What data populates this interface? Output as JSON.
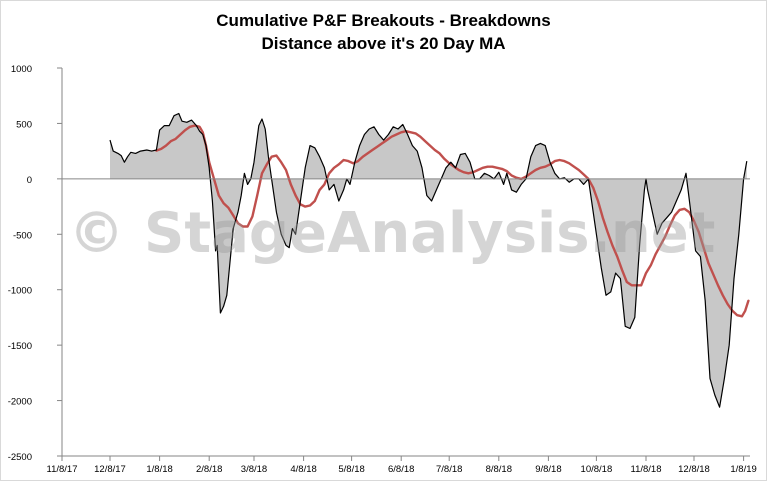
{
  "chart_data": {
    "type": "area",
    "title": "Cumulative P&F Breakouts - Breakdowns",
    "subtitle": "Distance above it's 20 Day MA",
    "xlabel": "",
    "ylabel": "",
    "ylim": [
      -2500,
      1000
    ],
    "yticks": [
      1000,
      500,
      0,
      -500,
      -1000,
      -1500,
      -2000,
      -2500
    ],
    "ytick_labels": [
      "1000",
      "500",
      "0",
      "-500",
      "-1000",
      "-1500",
      "-2000",
      "-2500"
    ],
    "xlim": [
      "2017-11-08",
      "2019-01-12"
    ],
    "xticks": [
      "2017-11-08",
      "2017-12-08",
      "2018-01-08",
      "2018-02-08",
      "2018-03-08",
      "2018-04-08",
      "2018-05-08",
      "2018-06-08",
      "2018-07-08",
      "2018-08-08",
      "2018-09-08",
      "2018-10-08",
      "2018-11-08",
      "2018-12-08",
      "2019-01-08"
    ],
    "xtick_labels": [
      "11/8/17",
      "12/8/17",
      "1/8/18",
      "2/8/18",
      "3/8/18",
      "4/8/18",
      "5/8/18",
      "6/8/18",
      "7/8/18",
      "8/8/18",
      "9/8/18",
      "10/8/18",
      "11/8/18",
      "12/8/18",
      "1/8/19"
    ],
    "grid": false,
    "legend": "none",
    "colors": {
      "area_fill": "#c8c8c8",
      "line": "#000000",
      "ma_line": "#c0504d"
    },
    "series": [
      {
        "values": [
          [
            "2017-12-08",
            350
          ],
          [
            "2017-12-10",
            250
          ],
          [
            "2017-12-13",
            230
          ],
          [
            "2017-12-15",
            210
          ],
          [
            "2017-12-17",
            150
          ],
          [
            "2017-12-19",
            200
          ],
          [
            "2017-12-21",
            240
          ],
          [
            "2017-12-24",
            230
          ],
          [
            "2017-12-27",
            250
          ],
          [
            "2017-12-31",
            260
          ],
          [
            "2018-01-03",
            250
          ],
          [
            "2018-01-06",
            260
          ],
          [
            "2018-01-08",
            440
          ],
          [
            "2018-01-11",
            480
          ],
          [
            "2018-01-14",
            480
          ],
          [
            "2018-01-17",
            570
          ],
          [
            "2018-01-20",
            590
          ],
          [
            "2018-01-22",
            520
          ],
          [
            "2018-01-25",
            510
          ],
          [
            "2018-01-28",
            530
          ],
          [
            "2018-01-31",
            480
          ],
          [
            "2018-02-02",
            430
          ],
          [
            "2018-02-04",
            400
          ],
          [
            "2018-02-06",
            300
          ],
          [
            "2018-02-08",
            100
          ],
          [
            "2018-02-10",
            -200
          ],
          [
            "2018-02-12",
            -650
          ],
          [
            "2018-02-13",
            -600
          ],
          [
            "2018-02-15",
            -1210
          ],
          [
            "2018-02-17",
            -1150
          ],
          [
            "2018-02-19",
            -1050
          ],
          [
            "2018-02-21",
            -750
          ],
          [
            "2018-02-23",
            -450
          ],
          [
            "2018-02-26",
            -300
          ],
          [
            "2018-02-28",
            -150
          ],
          [
            "2018-03-02",
            50
          ],
          [
            "2018-03-04",
            -50
          ],
          [
            "2018-03-06",
            0
          ],
          [
            "2018-03-08",
            150
          ],
          [
            "2018-03-11",
            480
          ],
          [
            "2018-03-13",
            540
          ],
          [
            "2018-03-15",
            450
          ],
          [
            "2018-03-17",
            200
          ],
          [
            "2018-03-19",
            0
          ],
          [
            "2018-03-22",
            -300
          ],
          [
            "2018-03-25",
            -500
          ],
          [
            "2018-03-28",
            -600
          ],
          [
            "2018-03-30",
            -620
          ],
          [
            "2018-04-01",
            -450
          ],
          [
            "2018-04-03",
            -500
          ],
          [
            "2018-04-06",
            -200
          ],
          [
            "2018-04-09",
            100
          ],
          [
            "2018-04-12",
            300
          ],
          [
            "2018-04-15",
            280
          ],
          [
            "2018-04-18",
            200
          ],
          [
            "2018-04-21",
            100
          ],
          [
            "2018-04-24",
            -100
          ],
          [
            "2018-04-27",
            -50
          ],
          [
            "2018-04-30",
            -200
          ],
          [
            "2018-05-03",
            -100
          ],
          [
            "2018-05-05",
            0
          ],
          [
            "2018-05-07",
            -50
          ],
          [
            "2018-05-10",
            150
          ],
          [
            "2018-05-13",
            300
          ],
          [
            "2018-05-16",
            400
          ],
          [
            "2018-05-19",
            450
          ],
          [
            "2018-05-22",
            470
          ],
          [
            "2018-05-25",
            400
          ],
          [
            "2018-05-28",
            350
          ],
          [
            "2018-05-31",
            400
          ],
          [
            "2018-06-03",
            470
          ],
          [
            "2018-06-06",
            450
          ],
          [
            "2018-06-09",
            490
          ],
          [
            "2018-06-12",
            400
          ],
          [
            "2018-06-15",
            300
          ],
          [
            "2018-06-18",
            250
          ],
          [
            "2018-06-21",
            100
          ],
          [
            "2018-06-24",
            -150
          ],
          [
            "2018-06-27",
            -200
          ],
          [
            "2018-06-30",
            -100
          ],
          [
            "2018-07-03",
            0
          ],
          [
            "2018-07-06",
            100
          ],
          [
            "2018-07-09",
            150
          ],
          [
            "2018-07-12",
            100
          ],
          [
            "2018-07-15",
            220
          ],
          [
            "2018-07-18",
            230
          ],
          [
            "2018-07-21",
            150
          ],
          [
            "2018-07-24",
            0
          ],
          [
            "2018-07-27",
            0
          ],
          [
            "2018-07-30",
            50
          ],
          [
            "2018-08-02",
            30
          ],
          [
            "2018-08-05",
            0
          ],
          [
            "2018-08-08",
            60
          ],
          [
            "2018-08-11",
            -50
          ],
          [
            "2018-08-13",
            50
          ],
          [
            "2018-08-16",
            -100
          ],
          [
            "2018-08-19",
            -120
          ],
          [
            "2018-08-22",
            -50
          ],
          [
            "2018-08-25",
            0
          ],
          [
            "2018-08-28",
            200
          ],
          [
            "2018-08-31",
            300
          ],
          [
            "2018-09-03",
            320
          ],
          [
            "2018-09-06",
            300
          ],
          [
            "2018-09-09",
            150
          ],
          [
            "2018-09-12",
            50
          ],
          [
            "2018-09-15",
            0
          ],
          [
            "2018-09-18",
            10
          ],
          [
            "2018-09-21",
            -30
          ],
          [
            "2018-09-24",
            0
          ],
          [
            "2018-09-27",
            0
          ],
          [
            "2018-09-30",
            -50
          ],
          [
            "2018-10-03",
            0
          ],
          [
            "2018-10-05",
            -200
          ],
          [
            "2018-10-08",
            -500
          ],
          [
            "2018-10-11",
            -800
          ],
          [
            "2018-10-14",
            -1050
          ],
          [
            "2018-10-17",
            -1020
          ],
          [
            "2018-10-20",
            -850
          ],
          [
            "2018-10-23",
            -900
          ],
          [
            "2018-10-26",
            -1330
          ],
          [
            "2018-10-29",
            -1350
          ],
          [
            "2018-11-01",
            -1250
          ],
          [
            "2018-11-04",
            -600
          ],
          [
            "2018-11-07",
            -100
          ],
          [
            "2018-11-08",
            0
          ],
          [
            "2018-11-09",
            -100
          ],
          [
            "2018-11-12",
            -300
          ],
          [
            "2018-11-15",
            -500
          ],
          [
            "2018-11-18",
            -400
          ],
          [
            "2018-11-21",
            -350
          ],
          [
            "2018-11-24",
            -300
          ],
          [
            "2018-11-27",
            -200
          ],
          [
            "2018-11-30",
            -100
          ],
          [
            "2018-12-03",
            50
          ],
          [
            "2018-12-06",
            -300
          ],
          [
            "2018-12-09",
            -650
          ],
          [
            "2018-12-12",
            -700
          ],
          [
            "2018-12-15",
            -1100
          ],
          [
            "2018-12-18",
            -1800
          ],
          [
            "2018-12-21",
            -1950
          ],
          [
            "2018-12-24",
            -2060
          ],
          [
            "2018-12-27",
            -1800
          ],
          [
            "2018-12-30",
            -1500
          ],
          [
            "2019-01-02",
            -900
          ],
          [
            "2019-01-05",
            -500
          ],
          [
            "2019-01-08",
            0
          ],
          [
            "2019-01-10",
            160
          ]
        ]
      },
      {
        "values": [
          [
            "2018-01-06",
            255
          ],
          [
            "2018-01-09",
            270
          ],
          [
            "2018-01-12",
            300
          ],
          [
            "2018-01-15",
            340
          ],
          [
            "2018-01-18",
            360
          ],
          [
            "2018-01-21",
            400
          ],
          [
            "2018-01-24",
            440
          ],
          [
            "2018-01-27",
            470
          ],
          [
            "2018-01-30",
            480
          ],
          [
            "2018-02-02",
            470
          ],
          [
            "2018-02-04",
            420
          ],
          [
            "2018-02-06",
            300
          ],
          [
            "2018-02-08",
            150
          ],
          [
            "2018-02-11",
            0
          ],
          [
            "2018-02-14",
            -150
          ],
          [
            "2018-02-17",
            -220
          ],
          [
            "2018-02-20",
            -260
          ],
          [
            "2018-02-23",
            -330
          ],
          [
            "2018-02-26",
            -400
          ],
          [
            "2018-03-01",
            -430
          ],
          [
            "2018-03-04",
            -430
          ],
          [
            "2018-03-07",
            -340
          ],
          [
            "2018-03-10",
            -150
          ],
          [
            "2018-03-13",
            50
          ],
          [
            "2018-03-16",
            130
          ],
          [
            "2018-03-19",
            200
          ],
          [
            "2018-03-22",
            210
          ],
          [
            "2018-03-25",
            150
          ],
          [
            "2018-03-28",
            80
          ],
          [
            "2018-03-31",
            -50
          ],
          [
            "2018-04-03",
            -150
          ],
          [
            "2018-04-06",
            -230
          ],
          [
            "2018-04-09",
            -250
          ],
          [
            "2018-04-12",
            -240
          ],
          [
            "2018-04-15",
            -200
          ],
          [
            "2018-04-18",
            -100
          ],
          [
            "2018-04-21",
            -50
          ],
          [
            "2018-04-24",
            50
          ],
          [
            "2018-04-27",
            100
          ],
          [
            "2018-04-30",
            130
          ],
          [
            "2018-05-03",
            170
          ],
          [
            "2018-05-06",
            160
          ],
          [
            "2018-05-09",
            140
          ],
          [
            "2018-05-12",
            160
          ],
          [
            "2018-05-15",
            200
          ],
          [
            "2018-05-18",
            230
          ],
          [
            "2018-05-21",
            260
          ],
          [
            "2018-05-24",
            290
          ],
          [
            "2018-05-27",
            320
          ],
          [
            "2018-05-30",
            350
          ],
          [
            "2018-06-02",
            380
          ],
          [
            "2018-06-05",
            400
          ],
          [
            "2018-06-08",
            420
          ],
          [
            "2018-06-11",
            430
          ],
          [
            "2018-06-14",
            420
          ],
          [
            "2018-06-17",
            410
          ],
          [
            "2018-06-20",
            380
          ],
          [
            "2018-06-23",
            340
          ],
          [
            "2018-06-26",
            300
          ],
          [
            "2018-06-29",
            260
          ],
          [
            "2018-07-02",
            230
          ],
          [
            "2018-07-05",
            180
          ],
          [
            "2018-07-08",
            140
          ],
          [
            "2018-07-11",
            110
          ],
          [
            "2018-07-14",
            80
          ],
          [
            "2018-07-17",
            60
          ],
          [
            "2018-07-20",
            50
          ],
          [
            "2018-07-23",
            60
          ],
          [
            "2018-07-26",
            80
          ],
          [
            "2018-07-29",
            100
          ],
          [
            "2018-08-01",
            110
          ],
          [
            "2018-08-04",
            110
          ],
          [
            "2018-08-07",
            100
          ],
          [
            "2018-08-10",
            90
          ],
          [
            "2018-08-13",
            70
          ],
          [
            "2018-08-16",
            30
          ],
          [
            "2018-08-19",
            10
          ],
          [
            "2018-08-22",
            0
          ],
          [
            "2018-08-25",
            20
          ],
          [
            "2018-08-28",
            50
          ],
          [
            "2018-08-31",
            80
          ],
          [
            "2018-09-03",
            100
          ],
          [
            "2018-09-06",
            110
          ],
          [
            "2018-09-09",
            130
          ],
          [
            "2018-09-12",
            160
          ],
          [
            "2018-09-15",
            170
          ],
          [
            "2018-09-18",
            160
          ],
          [
            "2018-09-21",
            140
          ],
          [
            "2018-09-24",
            110
          ],
          [
            "2018-09-27",
            80
          ],
          [
            "2018-09-30",
            40
          ],
          [
            "2018-10-03",
            0
          ],
          [
            "2018-10-06",
            -80
          ],
          [
            "2018-10-09",
            -200
          ],
          [
            "2018-10-12",
            -350
          ],
          [
            "2018-10-15",
            -480
          ],
          [
            "2018-10-18",
            -600
          ],
          [
            "2018-10-21",
            -700
          ],
          [
            "2018-10-24",
            -820
          ],
          [
            "2018-10-27",
            -930
          ],
          [
            "2018-10-30",
            -960
          ],
          [
            "2018-11-02",
            -960
          ],
          [
            "2018-11-05",
            -960
          ],
          [
            "2018-11-08",
            -850
          ],
          [
            "2018-11-11",
            -780
          ],
          [
            "2018-11-14",
            -680
          ],
          [
            "2018-11-17",
            -600
          ],
          [
            "2018-11-20",
            -520
          ],
          [
            "2018-11-23",
            -420
          ],
          [
            "2018-11-26",
            -330
          ],
          [
            "2018-11-29",
            -280
          ],
          [
            "2018-12-02",
            -270
          ],
          [
            "2018-12-05",
            -300
          ],
          [
            "2018-12-08",
            -380
          ],
          [
            "2018-12-11",
            -480
          ],
          [
            "2018-12-14",
            -620
          ],
          [
            "2018-12-17",
            -760
          ],
          [
            "2018-12-20",
            -860
          ],
          [
            "2018-12-23",
            -960
          ],
          [
            "2018-12-26",
            -1050
          ],
          [
            "2018-12-29",
            -1130
          ],
          [
            "2019-01-01",
            -1190
          ],
          [
            "2019-01-04",
            -1230
          ],
          [
            "2019-01-07",
            -1240
          ],
          [
            "2019-01-09",
            -1190
          ],
          [
            "2019-01-11",
            -1100
          ]
        ]
      }
    ]
  },
  "watermark": "© StageAnalysis.net"
}
